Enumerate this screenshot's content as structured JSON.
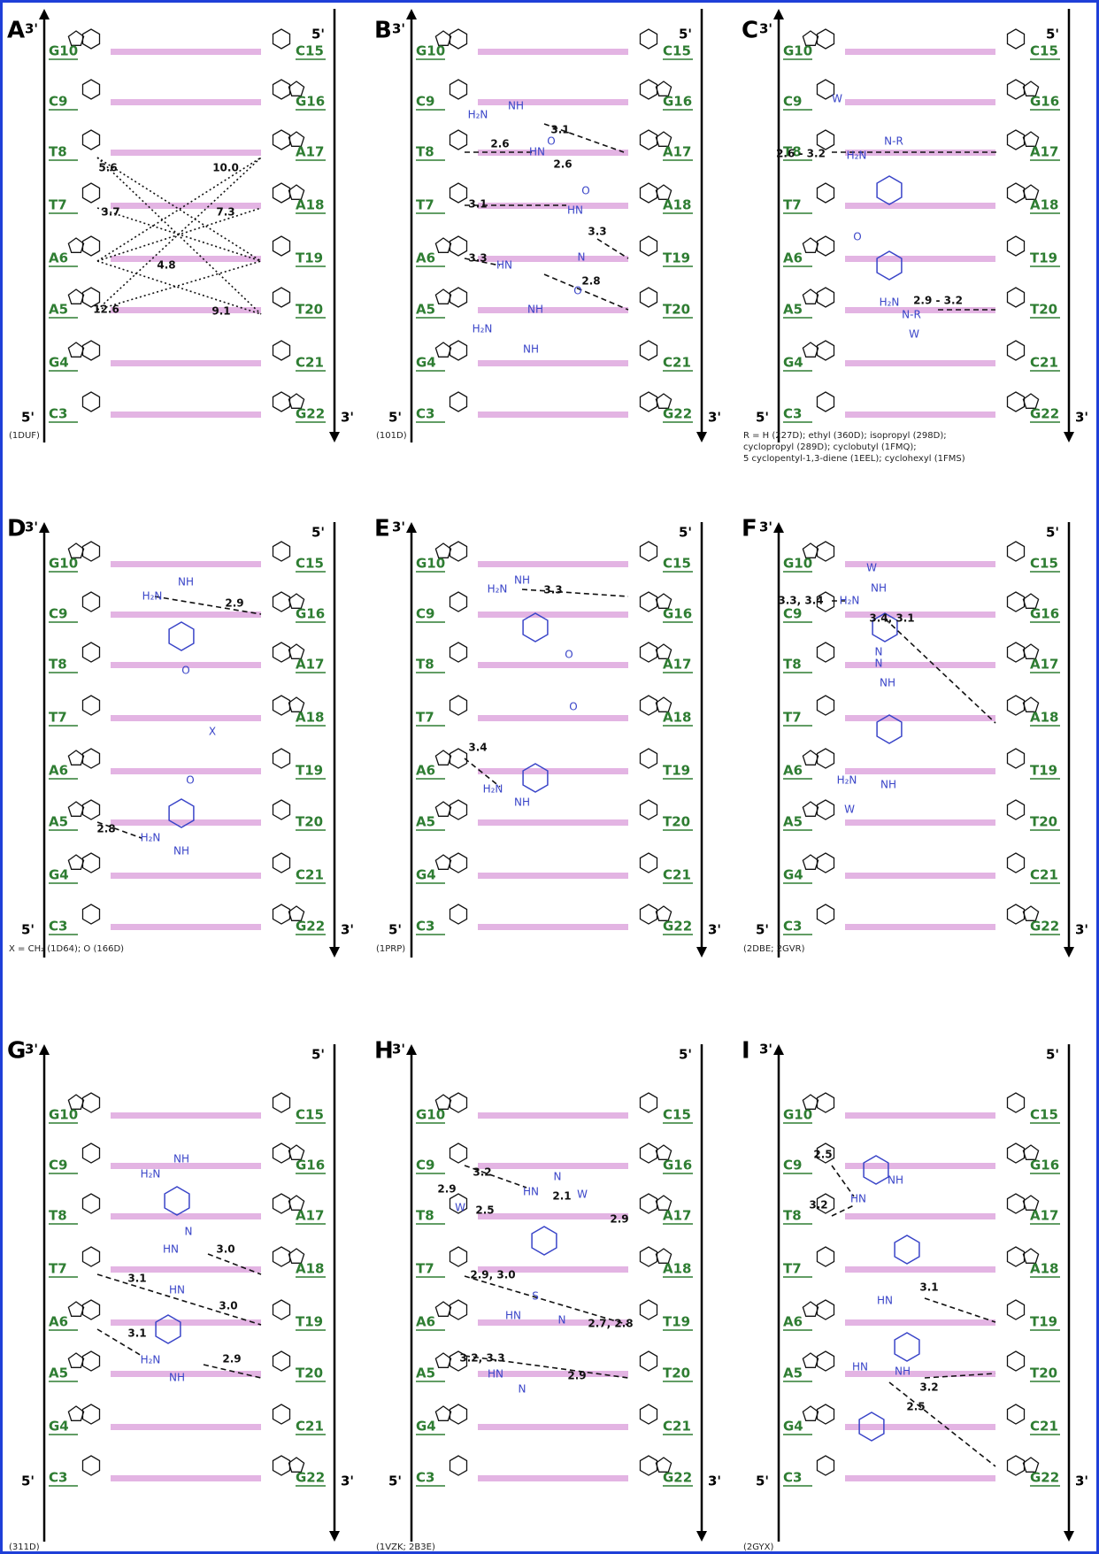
{
  "panels": [
    {
      "letter": "A",
      "ends": [
        "3'",
        "5'",
        "5'",
        "3'"
      ],
      "left_bases": [
        "G10",
        "C9",
        "T8",
        "T7",
        "A6",
        "A5",
        "G4",
        "C3"
      ],
      "right_bases": [
        "C15",
        "G16",
        "A17",
        "A18",
        "T19",
        "T20",
        "C21",
        "G22"
      ],
      "ligand_labels": [],
      "distances": [
        "5.6",
        "10.0",
        "3.7",
        "7.3",
        "4.8",
        "12.6",
        "9.1"
      ],
      "caption": [
        "(1DUF)"
      ]
    },
    {
      "letter": "B",
      "ends": [
        "3'",
        "5'",
        "5'",
        "3'"
      ],
      "left_bases": [
        "G10",
        "C9",
        "T8",
        "T7",
        "A6",
        "A5",
        "G4",
        "C3"
      ],
      "right_bases": [
        "C15",
        "G16",
        "A17",
        "A18",
        "T19",
        "T20",
        "C21",
        "G22"
      ],
      "ligand_labels": [
        "H₂N",
        "NH",
        "HN",
        "O",
        "HN",
        "O",
        "HN",
        "N",
        "O",
        "H₂N",
        "NH",
        "NH"
      ],
      "distances": [
        "3.1",
        "2.6",
        "2.6",
        "3.1",
        "3.3",
        "3.3",
        "2.8"
      ],
      "caption": [
        "(101D)"
      ]
    },
    {
      "letter": "C",
      "ends": [
        "3'",
        "5'",
        "5'",
        "3'"
      ],
      "left_bases": [
        "G10",
        "C9",
        "T8",
        "T7",
        "A6",
        "A5",
        "G4",
        "C3"
      ],
      "right_bases": [
        "C15",
        "G16",
        "A17",
        "A18",
        "T19",
        "T20",
        "C21",
        "G22"
      ],
      "ligand_labels": [
        "W",
        "H₂N",
        "N-R",
        "O",
        "H₂N",
        "N-R",
        "W"
      ],
      "distances": [
        "2.6 - 3.2",
        "2.9 - 3.2"
      ],
      "caption": [
        "R = H (227D); ethyl (360D); isopropyl (298D);",
        "cyclopropyl (289D); cyclobutyl (1FMQ);",
        "5 cyclopentyl-1,3-diene (1EEL); cyclohexyl (1FMS)"
      ]
    },
    {
      "letter": "D",
      "ends": [
        "3'",
        "5'",
        "5'",
        "3'"
      ],
      "left_bases": [
        "G10",
        "C9",
        "T8",
        "T7",
        "A6",
        "A5",
        "G4",
        "C3"
      ],
      "right_bases": [
        "C15",
        "G16",
        "A17",
        "A18",
        "T19",
        "T20",
        "C21",
        "G22"
      ],
      "ligand_labels": [
        "NH",
        "H₂N",
        "O",
        "X",
        "O",
        "H₂N",
        "NH"
      ],
      "distances": [
        "2.9",
        "2.8"
      ],
      "caption": [
        "X = CH₂ (1D64); O (166D)"
      ]
    },
    {
      "letter": "E",
      "ends": [
        "3'",
        "5'",
        "5'",
        "3'"
      ],
      "left_bases": [
        "G10",
        "C9",
        "T8",
        "T7",
        "A6",
        "A5",
        "G4",
        "C3"
      ],
      "right_bases": [
        "C15",
        "G16",
        "A17",
        "A18",
        "T19",
        "T20",
        "C21",
        "G22"
      ],
      "ligand_labels": [
        "NH",
        "H₂N",
        "O",
        "O",
        "H₂N",
        "NH"
      ],
      "distances": [
        "3.3",
        "3.4"
      ],
      "caption": [
        "(1PRP)"
      ]
    },
    {
      "letter": "F",
      "ends": [
        "3'",
        "5'",
        "5'",
        "3'"
      ],
      "left_bases": [
        "G10",
        "C9",
        "T8",
        "T7",
        "A6",
        "A5",
        "G4",
        "C3"
      ],
      "right_bases": [
        "C15",
        "G16",
        "A17",
        "A18",
        "T19",
        "T20",
        "C21",
        "G22"
      ],
      "ligand_labels": [
        "W",
        "H₂N",
        "NH",
        "N",
        "N",
        "NH",
        "H₂N",
        "NH",
        "W"
      ],
      "distances": [
        "3.3, 3.4",
        "3.4, 3.1"
      ],
      "caption": [
        "(2DBE; 2GVR)"
      ]
    },
    {
      "letter": "G",
      "ends": [
        "3'",
        "5'",
        "5'",
        "3'"
      ],
      "left_bases": [
        "G10",
        "C9",
        "T8",
        "T7",
        "A6",
        "A5",
        "G4",
        "C3"
      ],
      "right_bases": [
        "C15",
        "G16",
        "A17",
        "A18",
        "T19",
        "T20",
        "C21",
        "G22"
      ],
      "ligand_labels": [
        "NH",
        "H₂N",
        "N",
        "HN",
        "HN",
        "H₂N",
        "NH"
      ],
      "distances": [
        "3.0",
        "3.1",
        "3.0",
        "3.1",
        "2.9"
      ],
      "caption": [
        "(311D)"
      ]
    },
    {
      "letter": "H",
      "ends": [
        "3'",
        "5'",
        "5'",
        "3'"
      ],
      "left_bases": [
        "G10",
        "C9",
        "T8",
        "T7",
        "A6",
        "A5",
        "G4",
        "C3"
      ],
      "right_bases": [
        "C15",
        "G16",
        "A17",
        "A18",
        "T19",
        "T20",
        "C21",
        "G22"
      ],
      "ligand_labels": [
        "N",
        "HN",
        "W",
        "W",
        "S",
        "HN",
        "N",
        "HN",
        "N"
      ],
      "distances": [
        "3.2",
        "2.9",
        "2.1",
        "2.5",
        "2.9",
        "2.9, 3.0",
        "2.7, 2.8",
        "3.2, 3.3",
        "2.9"
      ],
      "caption": [
        "(1VZK; 2B3E)"
      ]
    },
    {
      "letter": "I",
      "ends": [
        "3'",
        "5'",
        "5'",
        "3'"
      ],
      "left_bases": [
        "G10",
        "C9",
        "T8",
        "T7",
        "A6",
        "A5",
        "G4",
        "C3"
      ],
      "right_bases": [
        "C15",
        "G16",
        "A17",
        "A18",
        "T19",
        "T20",
        "C21",
        "G22"
      ],
      "ligand_labels": [
        "HN",
        "NH",
        "HN",
        "HN",
        "NH"
      ],
      "distances": [
        "2.5",
        "3.2",
        "3.1",
        "3.2",
        "2.5"
      ],
      "caption": [
        "(2GYX)"
      ]
    }
  ]
}
